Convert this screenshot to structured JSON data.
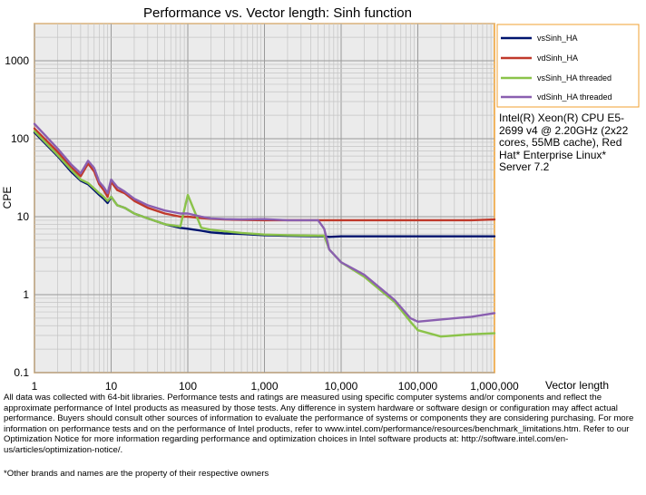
{
  "chart_data": {
    "type": "line",
    "title": "Performance vs. Vector length: Sinh function",
    "xlabel": "Vector length",
    "ylabel": "CPE",
    "xscale": "log",
    "yscale": "log",
    "xlim": [
      1,
      1000000
    ],
    "ylim": [
      0.1,
      3000
    ],
    "grid": true,
    "legend_position": "top-right (outside plot)",
    "x_tick_labels": [
      "1",
      "10",
      "100",
      "1,000",
      "10,000",
      "100,000",
      "1,000,000"
    ],
    "y_tick_labels": [
      "0.1",
      "1",
      "10",
      "100",
      "1000"
    ],
    "x": [
      1,
      2,
      3,
      4,
      5,
      6,
      7,
      8,
      9,
      10,
      12,
      15,
      20,
      30,
      50,
      80,
      100,
      150,
      200,
      300,
      500,
      1000,
      2000,
      5000,
      6000,
      7000,
      10000,
      20000,
      50000,
      80000,
      100000,
      200000,
      500000,
      1000000
    ],
    "series": [
      {
        "name": "vsSinh_HA",
        "color": "#00146e",
        "values": [
          120,
          60,
          38,
          29,
          26,
          22,
          19,
          17,
          15,
          18,
          14,
          13,
          11,
          9.5,
          8,
          7.2,
          7.0,
          6.6,
          6.3,
          6.1,
          6.0,
          5.8,
          5.7,
          5.6,
          5.6,
          5.5,
          5.6,
          5.6,
          5.6,
          5.6,
          5.6,
          5.6,
          5.6,
          5.6
        ]
      },
      {
        "name": "vdSinh_HA",
        "color": "#c0392b",
        "values": [
          135,
          68,
          43,
          33,
          48,
          38,
          26,
          22,
          18,
          28,
          22,
          20,
          16,
          13,
          11,
          10,
          10,
          9.6,
          9.4,
          9.2,
          9.1,
          9.0,
          9.0,
          9.0,
          9.0,
          9.0,
          9.0,
          9.0,
          9.0,
          9.0,
          9.0,
          9.0,
          9.0,
          9.2
        ]
      },
      {
        "name": "vsSinh_HA threaded",
        "color": "#8bc34a",
        "values": [
          125,
          62,
          40,
          30,
          27,
          23,
          20,
          18,
          16,
          18,
          14,
          13,
          11,
          9.5,
          8,
          7.5,
          19,
          7.2,
          6.8,
          6.5,
          6.2,
          5.9,
          5.8,
          5.7,
          5.7,
          3.8,
          2.6,
          1.7,
          0.8,
          0.45,
          0.35,
          0.29,
          0.31,
          0.32
        ]
      },
      {
        "name": "vdSinh_HA threaded",
        "color": "#8a5fb0",
        "values": [
          155,
          75,
          47,
          36,
          52,
          42,
          28,
          24,
          20,
          30,
          24,
          21,
          17,
          14,
          12,
          11,
          11,
          10,
          9.5,
          9.3,
          9.2,
          9.3,
          9.0,
          9.0,
          7.0,
          3.8,
          2.6,
          1.8,
          0.85,
          0.5,
          0.45,
          0.48,
          0.52,
          0.58
        ]
      }
    ]
  },
  "system_note": "Intel(R) Xeon(R) CPU E5-2699 v4 @ 2.20GHz (2x22 cores, 55MB cache), Red Hat* Enterprise Linux* Server 7.2",
  "disclaimer": "All data was collected with 64-bit libraries. Performance tests and ratings are measured using specific computer systems and/or components and reflect the approximate performance of Intel products as measured by those tests. Any difference in system hardware or software design or configuration may affect actual performance. Buyers should consult other sources of information to evaluate the performance of systems or components they are considering purchasing. For more information on performance tests and on the performance of Intel products, refer to www.intel.com/performance/resources/benchmark_limitations.htm. Refer to our Optimization Notice for more information regarding performance and optimization choices in Intel software products at: http://software.intel.com/en-us/articles/optimization-notice/.",
  "footnote": "*Other brands and names are the property of their respective owners"
}
